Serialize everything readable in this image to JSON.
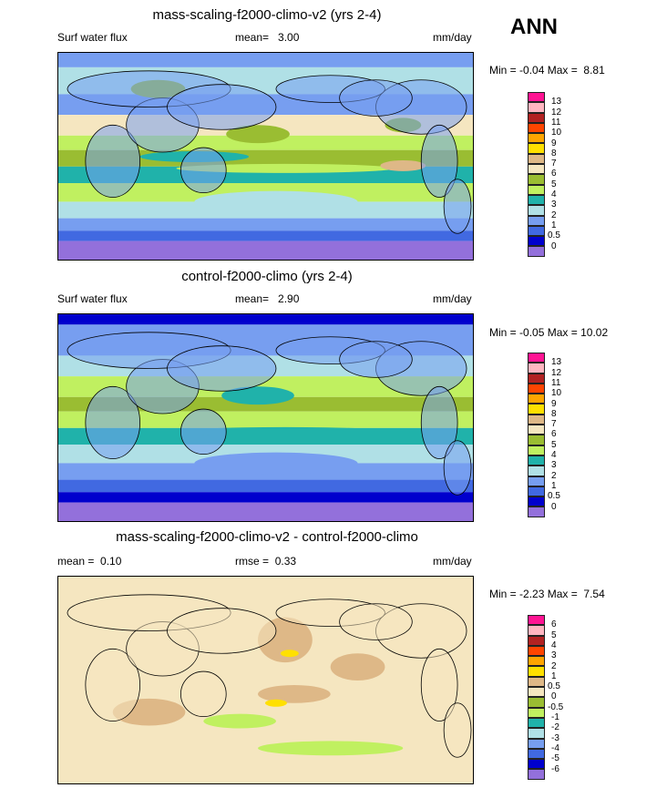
{
  "season": "ANN",
  "units": "mm/day",
  "panels": [
    {
      "title": "mass-scaling-f2000-climo-v2 (yrs 2-4)",
      "variable": "Surf water flux",
      "stat_label": "mean=",
      "stat_value": "3.00",
      "min_label": "Min =",
      "min_value": "-0.04",
      "max_label": "Max =",
      "max_value": "8.81",
      "levels": [
        "13",
        "12",
        "11",
        "10",
        "9",
        "8",
        "7",
        "6",
        "5",
        "4",
        "3",
        "2",
        "1",
        "0.5",
        "0"
      ]
    },
    {
      "title": "control-f2000-climo (yrs 2-4)",
      "variable": "Surf water flux",
      "stat_label": "mean=",
      "stat_value": "2.90",
      "min_label": "Min =",
      "min_value": "-0.05",
      "max_label": "Max =",
      "max_value": "10.02",
      "levels": [
        "13",
        "12",
        "11",
        "10",
        "9",
        "8",
        "7",
        "6",
        "5",
        "4",
        "3",
        "2",
        "1",
        "0.5",
        "0"
      ]
    },
    {
      "title": "mass-scaling-f2000-climo-v2 - control-f2000-climo",
      "stat_label": "mean =",
      "stat_value": "0.10",
      "rmse_label": "rmse =",
      "rmse_value": "0.33",
      "min_label": "Min =",
      "min_value": "-2.23",
      "max_label": "Max =",
      "max_value": "7.54",
      "levels": [
        "6",
        "5",
        "4",
        "3",
        "2",
        "1",
        "0.5",
        "0",
        "-0.5",
        "-1",
        "-2",
        "-3",
        "-4",
        "-5",
        "-6"
      ]
    }
  ],
  "colorbar_colors_top_to_bottom": [
    "#ff1493",
    "#ffb6c1",
    "#b22222",
    "#ff4500",
    "#ffa500",
    "#ffe000",
    "#deb887",
    "#f5e6c0",
    "#9abd32",
    "#c0f060",
    "#20b2aa",
    "#b0e0e6",
    "#779ef0",
    "#4169e1",
    "#0000cd",
    "#9370db"
  ]
}
